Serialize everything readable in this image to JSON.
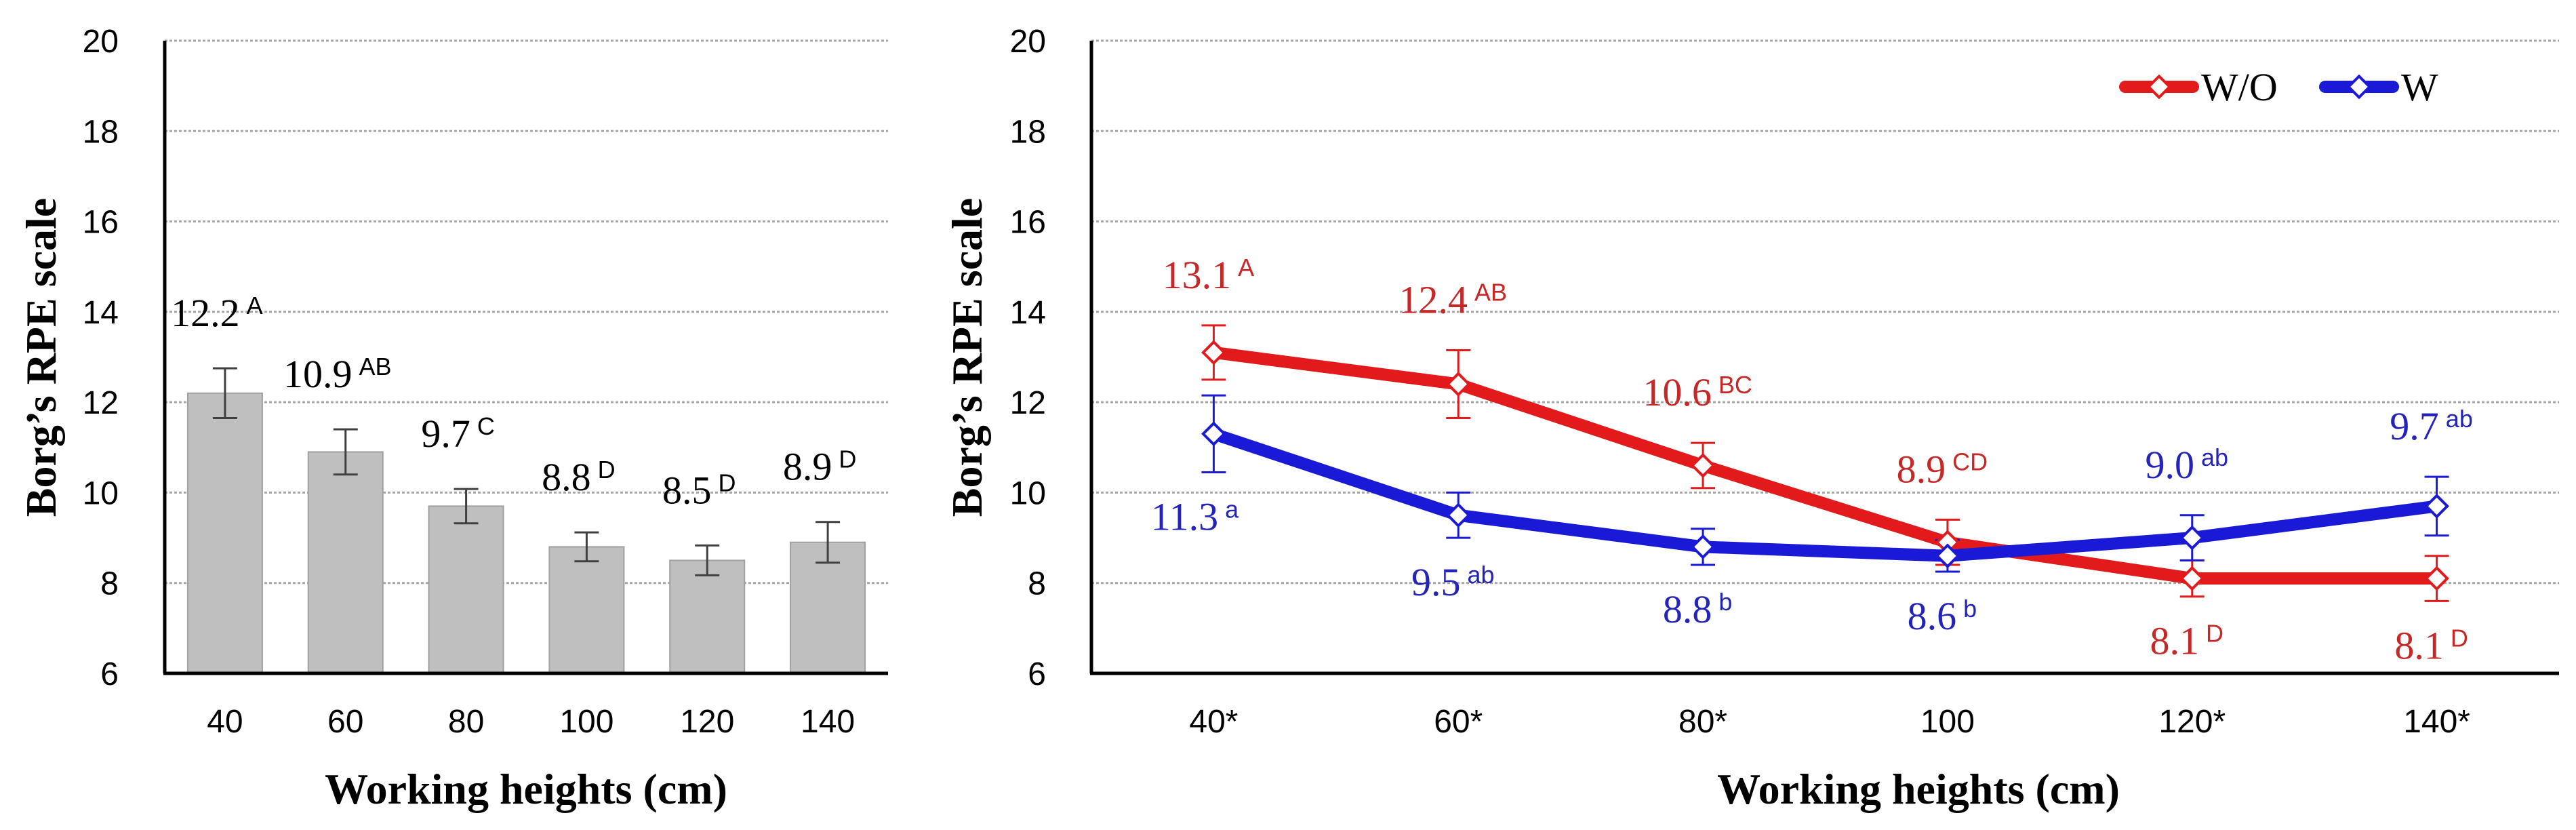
{
  "chart_data": [
    {
      "type": "bar",
      "xlabel": "Working heights (cm)",
      "ylabel": "Borg’s RPE scale",
      "ylim": [
        6,
        20
      ],
      "yticks": [
        "6",
        "8",
        "10",
        "12",
        "14",
        "16",
        "18",
        "20"
      ],
      "categories": [
        "40",
        "60",
        "80",
        "100",
        "120",
        "140"
      ],
      "values": [
        12.2,
        10.9,
        9.7,
        8.8,
        8.5,
        8.9
      ],
      "errors": [
        0.55,
        0.5,
        0.38,
        0.32,
        0.33,
        0.45
      ],
      "value_labels": [
        "12.2",
        "10.9",
        "9.7",
        "8.8",
        "8.5",
        "8.9"
      ],
      "group_letters": [
        "A",
        "AB",
        "C",
        "D",
        "D",
        "D"
      ],
      "grid": true,
      "bar_color": "#bfbfbf"
    },
    {
      "type": "line",
      "xlabel": "Working heights (cm)",
      "ylabel": "Borg’s RPE scale",
      "ylim": [
        6,
        20
      ],
      "yticks": [
        "6",
        "8",
        "10",
        "12",
        "14",
        "16",
        "18",
        "20"
      ],
      "categories": [
        "40*",
        "60*",
        "80*",
        "100",
        "120*",
        "140*"
      ],
      "legend_position": "top-right",
      "grid": true,
      "series": [
        {
          "name": "W/O",
          "color": "#e31a1c",
          "label_color": "#c62828",
          "values": [
            13.1,
            12.4,
            10.6,
            8.9,
            8.1,
            8.1
          ],
          "errors": [
            0.6,
            0.75,
            0.5,
            0.5,
            0.4,
            0.5
          ],
          "value_labels": [
            "13.1",
            "12.4",
            "10.6",
            "8.9",
            "8.1",
            "8.1"
          ],
          "group_letters": [
            "A",
            "AB",
            "BC",
            "CD",
            "D",
            "D"
          ]
        },
        {
          "name": "W",
          "color": "#1a1ad6",
          "label_color": "#2424b8",
          "values": [
            11.3,
            9.5,
            8.8,
            8.6,
            9.0,
            9.7
          ],
          "errors": [
            0.85,
            0.5,
            0.4,
            0.35,
            0.5,
            0.65
          ],
          "value_labels": [
            "11.3",
            "9.5",
            "8.8",
            "8.6",
            "9.0",
            "9.7"
          ],
          "group_letters": [
            "a",
            "ab",
            "b",
            "b",
            "ab",
            "ab"
          ]
        }
      ]
    }
  ]
}
